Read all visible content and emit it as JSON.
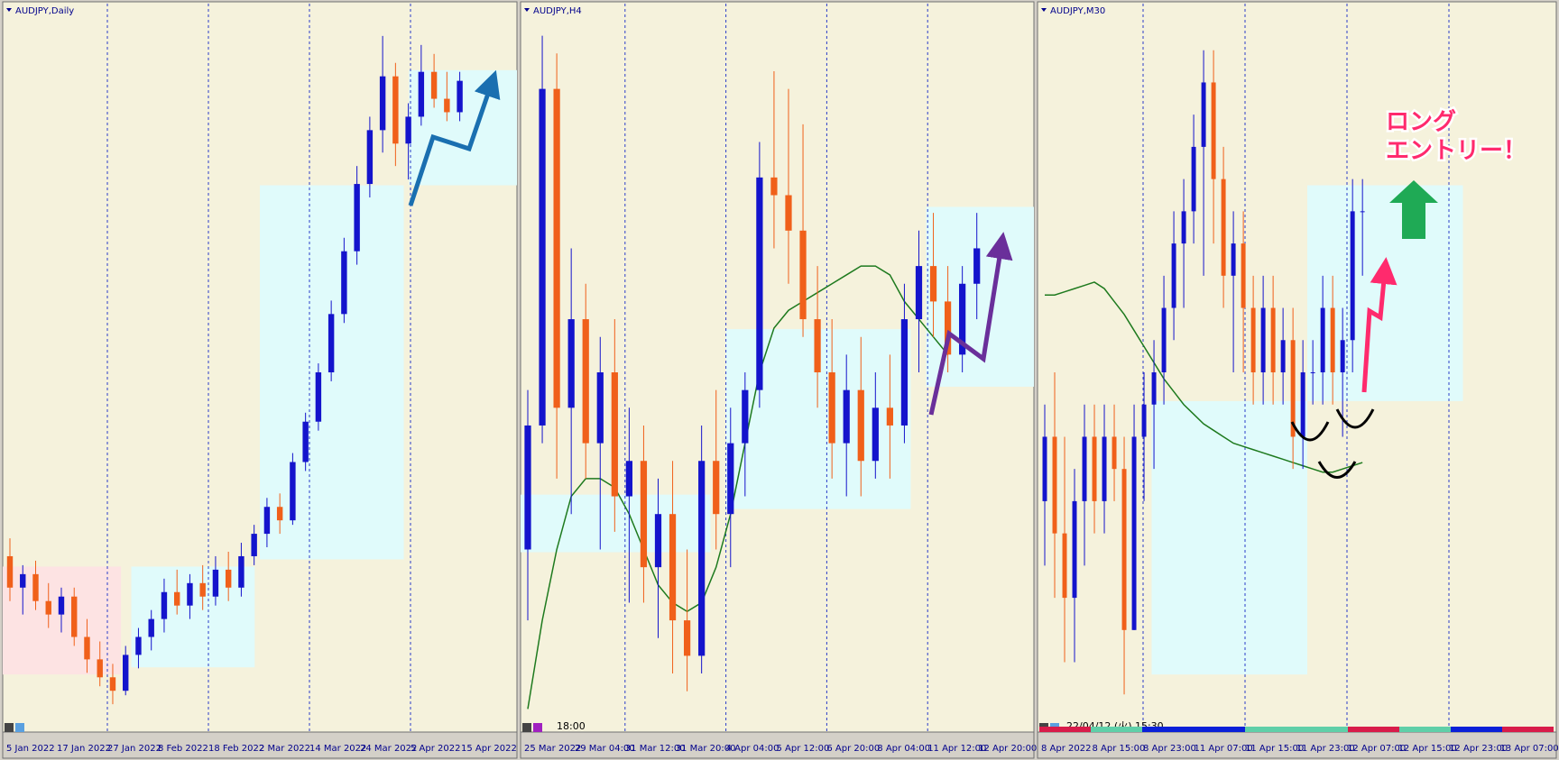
{
  "panels": [
    {
      "title": "AUDJPY,Daily",
      "xlabels": [
        "5 Jan 2022",
        "17 Jan 2022",
        "27 Jan 2022",
        "8 Feb 2022",
        "18 Feb 2022",
        "2 Mar 2022",
        "14 Mar 2022",
        "24 Mar 2022",
        "5 Apr 2022",
        "15 Apr 2022"
      ],
      "ylim": [
        79.8,
        95.6
      ],
      "candles": [
        [
          83.6,
          84.0,
          82.6,
          82.9
        ],
        [
          82.9,
          83.4,
          82.3,
          83.2
        ],
        [
          83.2,
          83.5,
          82.4,
          82.6
        ],
        [
          82.6,
          83.0,
          82.0,
          82.3
        ],
        [
          82.3,
          82.9,
          81.9,
          82.7
        ],
        [
          82.7,
          82.9,
          81.6,
          81.8
        ],
        [
          81.8,
          82.2,
          81.0,
          81.3
        ],
        [
          81.3,
          81.7,
          80.7,
          80.9
        ],
        [
          80.9,
          81.2,
          80.3,
          80.6
        ],
        [
          80.6,
          81.6,
          80.5,
          81.4
        ],
        [
          81.4,
          82.0,
          81.1,
          81.8
        ],
        [
          81.8,
          82.4,
          81.5,
          82.2
        ],
        [
          82.2,
          83.1,
          81.9,
          82.8
        ],
        [
          82.8,
          83.3,
          82.3,
          82.5
        ],
        [
          82.5,
          83.2,
          82.2,
          83.0
        ],
        [
          83.0,
          83.4,
          82.4,
          82.7
        ],
        [
          82.7,
          83.6,
          82.5,
          83.3
        ],
        [
          83.3,
          83.7,
          82.6,
          82.9
        ],
        [
          82.9,
          83.9,
          82.7,
          83.6
        ],
        [
          83.6,
          84.3,
          83.4,
          84.1
        ],
        [
          84.1,
          84.9,
          83.8,
          84.7
        ],
        [
          84.7,
          85.0,
          84.1,
          84.4
        ],
        [
          84.4,
          85.9,
          84.3,
          85.7
        ],
        [
          85.7,
          86.8,
          85.5,
          86.6
        ],
        [
          86.6,
          87.9,
          86.4,
          87.7
        ],
        [
          87.7,
          89.3,
          87.5,
          89.0
        ],
        [
          89.0,
          90.7,
          88.8,
          90.4
        ],
        [
          90.4,
          92.3,
          90.1,
          91.9
        ],
        [
          91.9,
          93.4,
          91.6,
          93.1
        ],
        [
          93.1,
          95.2,
          92.6,
          94.3
        ],
        [
          94.3,
          94.6,
          92.3,
          92.8
        ],
        [
          92.8,
          93.7,
          92.0,
          93.4
        ],
        [
          93.4,
          95.0,
          93.2,
          94.4
        ],
        [
          94.4,
          94.8,
          93.6,
          93.8
        ],
        [
          93.8,
          94.4,
          93.3,
          93.5
        ],
        [
          93.5,
          94.4,
          93.3,
          94.2
        ]
      ]
    },
    {
      "title": "AUDJPY,H4",
      "xlabels": [
        "25 Mar 2022",
        "29 Mar 04:00",
        "31 Mar 12:00",
        "31 Mar 20:00",
        "4 Apr 04:00",
        "5 Apr 12:00",
        "6 Apr 20:00",
        "8 Apr 04:00",
        "11 Apr 12:00",
        "12 Apr 20:00"
      ],
      "status": "18:00",
      "ylim": [
        90.6,
        94.6
      ],
      "candles": [
        [
          91.6,
          92.5,
          91.2,
          92.3
        ],
        [
          92.3,
          94.5,
          92.2,
          94.2
        ],
        [
          94.2,
          94.4,
          92.0,
          92.4
        ],
        [
          92.4,
          93.3,
          91.8,
          92.9
        ],
        [
          92.9,
          93.1,
          92.0,
          92.2
        ],
        [
          92.2,
          92.8,
          91.6,
          92.6
        ],
        [
          92.6,
          92.9,
          91.7,
          91.9
        ],
        [
          91.9,
          92.4,
          91.3,
          92.1
        ],
        [
          92.1,
          92.3,
          91.3,
          91.5
        ],
        [
          91.5,
          92.0,
          91.1,
          91.8
        ],
        [
          91.8,
          92.1,
          90.9,
          91.2
        ],
        [
          91.2,
          91.6,
          90.8,
          91.0
        ],
        [
          91.0,
          92.3,
          90.9,
          92.1
        ],
        [
          92.1,
          92.5,
          91.6,
          91.8
        ],
        [
          91.8,
          92.4,
          91.5,
          92.2
        ],
        [
          92.2,
          92.6,
          91.9,
          92.5
        ],
        [
          92.5,
          93.9,
          92.4,
          93.7
        ],
        [
          93.7,
          94.3,
          93.3,
          93.6
        ],
        [
          93.6,
          94.2,
          93.1,
          93.4
        ],
        [
          93.4,
          94.0,
          92.8,
          92.9
        ],
        [
          92.9,
          93.2,
          92.4,
          92.6
        ],
        [
          92.6,
          92.9,
          92.0,
          92.2
        ],
        [
          92.2,
          92.7,
          91.9,
          92.5
        ],
        [
          92.5,
          92.8,
          91.9,
          92.1
        ],
        [
          92.1,
          92.6,
          92.0,
          92.4
        ],
        [
          92.4,
          92.7,
          92.0,
          92.3
        ],
        [
          92.3,
          93.1,
          92.2,
          92.9
        ],
        [
          92.9,
          93.4,
          92.6,
          93.2
        ],
        [
          93.2,
          93.5,
          92.8,
          93.0
        ],
        [
          93.0,
          93.2,
          92.6,
          92.7
        ],
        [
          92.7,
          93.2,
          92.6,
          93.1
        ],
        [
          93.1,
          93.5,
          92.9,
          93.3
        ]
      ],
      "ma": [
        90.7,
        91.2,
        91.6,
        91.9,
        92.0,
        92.0,
        91.95,
        91.8,
        91.6,
        91.4,
        91.3,
        91.25,
        91.3,
        91.5,
        91.8,
        92.2,
        92.6,
        92.85,
        92.95,
        93.0,
        93.05,
        93.1,
        93.15,
        93.2,
        93.2,
        93.15,
        93.0,
        92.9,
        92.8,
        92.7,
        null,
        null
      ]
    },
    {
      "title": "AUDJPY,M30",
      "xlabels": [
        "8 Apr 2022",
        "8 Apr 15:00",
        "8 Apr 23:00",
        "11 Apr 07:00",
        "11 Apr 15:00",
        "11 Apr 23:00",
        "12 Apr 07:00",
        "12 Apr 15:00",
        "12 Apr 23:00",
        "13 Apr 07:00"
      ],
      "status": "22/04/12 (火) 15:30",
      "annotation": [
        "ロング",
        "エントリー！"
      ],
      "ylim": [
        91.9,
        94.1
      ],
      "candles": [
        [
          92.6,
          92.9,
          92.4,
          92.8
        ],
        [
          92.8,
          93.0,
          92.3,
          92.5
        ],
        [
          92.5,
          92.8,
          92.1,
          92.3
        ],
        [
          92.3,
          92.7,
          92.1,
          92.6
        ],
        [
          92.6,
          92.9,
          92.4,
          92.8
        ],
        [
          92.8,
          92.9,
          92.5,
          92.6
        ],
        [
          92.6,
          92.9,
          92.5,
          92.8
        ],
        [
          92.8,
          92.9,
          92.6,
          92.7
        ],
        [
          92.7,
          92.8,
          92.0,
          92.2
        ],
        [
          92.2,
          92.9,
          92.2,
          92.8
        ],
        [
          92.8,
          93.0,
          92.6,
          92.9
        ],
        [
          92.9,
          93.1,
          92.7,
          93.0
        ],
        [
          93.0,
          93.3,
          92.9,
          93.2
        ],
        [
          93.2,
          93.5,
          93.1,
          93.4
        ],
        [
          93.4,
          93.6,
          93.2,
          93.5
        ],
        [
          93.5,
          93.8,
          93.4,
          93.7
        ],
        [
          93.7,
          94.0,
          93.3,
          93.9
        ],
        [
          93.9,
          94.0,
          93.4,
          93.6
        ],
        [
          93.6,
          93.7,
          93.2,
          93.3
        ],
        [
          93.3,
          93.5,
          93.0,
          93.4
        ],
        [
          93.4,
          93.5,
          93.0,
          93.2
        ],
        [
          93.2,
          93.3,
          92.9,
          93.0
        ],
        [
          93.0,
          93.3,
          92.9,
          93.2
        ],
        [
          93.2,
          93.3,
          92.9,
          93.0
        ],
        [
          93.0,
          93.2,
          92.9,
          93.1
        ],
        [
          93.1,
          93.2,
          92.7,
          92.8
        ],
        [
          92.8,
          93.1,
          92.7,
          93.0
        ],
        [
          93.0,
          93.1,
          92.9,
          93.0
        ],
        [
          93.0,
          93.3,
          92.9,
          93.2
        ],
        [
          93.2,
          93.3,
          92.9,
          93.0
        ],
        [
          93.0,
          93.2,
          92.8,
          93.1
        ],
        [
          93.1,
          93.6,
          93.0,
          93.5
        ],
        [
          93.5,
          93.6,
          93.3,
          93.5
        ]
      ],
      "ma": [
        93.24,
        93.24,
        93.25,
        93.26,
        93.27,
        93.28,
        93.26,
        93.22,
        93.18,
        93.13,
        93.08,
        93.03,
        92.98,
        92.94,
        92.9,
        92.87,
        92.84,
        92.82,
        92.8,
        92.78,
        92.77,
        92.76,
        92.75,
        92.74,
        92.73,
        92.72,
        92.71,
        92.7,
        92.69,
        92.69,
        92.7,
        92.71,
        92.72
      ]
    }
  ]
}
